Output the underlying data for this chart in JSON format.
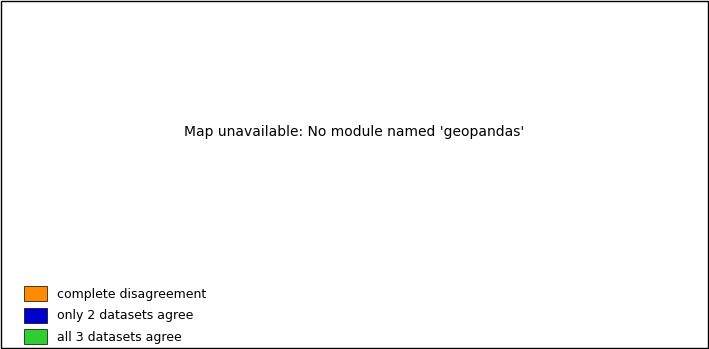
{
  "title": "",
  "legend_items": [
    {
      "label": "complete disagreement",
      "color": "#FF8C00"
    },
    {
      "label": "only 2 datasets agree",
      "color": "#0000CD"
    },
    {
      "label": "all 3 datasets agree",
      "color": "#32CD32"
    }
  ],
  "legend_fontsize": 9,
  "background_color": "#FFFFFF",
  "figsize": [
    7.09,
    3.49
  ],
  "dpi": 100,
  "orange_color": "#FF8C00",
  "blue_color": "#0000FF",
  "green_color": "#32CD32"
}
